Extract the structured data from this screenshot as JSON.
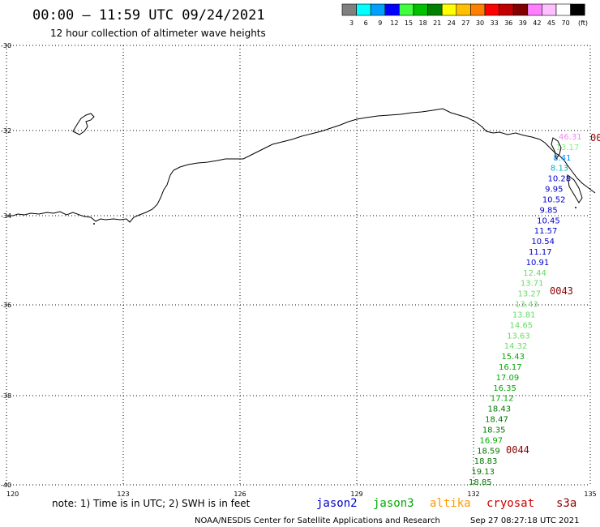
{
  "header": {
    "title": "00:00 – 11:59 UTC 09/24/2021",
    "subtitle": "12 hour collection of altimeter wave heights"
  },
  "legend": {
    "unit": "(ft)",
    "bins": [
      {
        "color": "#808080",
        "label": "3"
      },
      {
        "color": "#00ffff",
        "label": "6"
      },
      {
        "color": "#00a0ff",
        "label": "9"
      },
      {
        "color": "#0000ff",
        "label": "12"
      },
      {
        "color": "#40ff40",
        "label": "15"
      },
      {
        "color": "#00c000",
        "label": "18"
      },
      {
        "color": "#008000",
        "label": "21"
      },
      {
        "color": "#ffff00",
        "label": "24"
      },
      {
        "color": "#ffc000",
        "label": "27"
      },
      {
        "color": "#ff8000",
        "label": "30"
      },
      {
        "color": "#ff0000",
        "label": "33"
      },
      {
        "color": "#c00000",
        "label": "36"
      },
      {
        "color": "#800000",
        "label": "39"
      },
      {
        "color": "#ff80ff",
        "label": "42"
      },
      {
        "color": "#ffc0ff",
        "label": "45"
      },
      {
        "color": "#ffffff",
        "label": "70"
      },
      {
        "color": "#000000",
        "label": ""
      }
    ]
  },
  "map": {
    "lon_range": [
      120,
      135
    ],
    "lat_range": [
      -40,
      -30
    ],
    "lon_ticks": [
      "120",
      "123",
      "126",
      "129",
      "132",
      "135"
    ],
    "lat_ticks": [
      "-30",
      "-32",
      "-34",
      "-36",
      "-38",
      "-40"
    ]
  },
  "observations": [
    {
      "text": "46.31",
      "color": "#ee88ee"
    },
    {
      "text": "13.17",
      "color": "#88ee88"
    },
    {
      "text": "8.41",
      "color": "#0090ff"
    },
    {
      "text": "8.13",
      "color": "#00b0c0"
    },
    {
      "text": "10.28",
      "color": "#0000cc"
    },
    {
      "text": "9.95",
      "color": "#0000cc"
    },
    {
      "text": "10.52",
      "color": "#0000cc"
    },
    {
      "text": "9.85",
      "color": "#0000cc"
    },
    {
      "text": "10.45",
      "color": "#0000cc"
    },
    {
      "text": "11.57",
      "color": "#0000cc"
    },
    {
      "text": "10.54",
      "color": "#0000cc"
    },
    {
      "text": "11.17",
      "color": "#0000cc"
    },
    {
      "text": "10.91",
      "color": "#0000cc"
    },
    {
      "text": "12.44",
      "color": "#66dd66"
    },
    {
      "text": "13.71",
      "color": "#66dd66"
    },
    {
      "text": "13.27",
      "color": "#66dd66"
    },
    {
      "text": "13.43",
      "color": "#66dd66"
    },
    {
      "text": "13.81",
      "color": "#66dd66"
    },
    {
      "text": "14.65",
      "color": "#66dd66"
    },
    {
      "text": "13.63",
      "color": "#66dd66"
    },
    {
      "text": "14.32",
      "color": "#66dd66"
    },
    {
      "text": "15.43",
      "color": "#00aa00"
    },
    {
      "text": "16.17",
      "color": "#00aa00"
    },
    {
      "text": "17.09",
      "color": "#00aa00"
    },
    {
      "text": "16.35",
      "color": "#00aa00"
    },
    {
      "text": "17.12",
      "color": "#00aa00"
    },
    {
      "text": "18.43",
      "color": "#007700"
    },
    {
      "text": "18.47",
      "color": "#007700"
    },
    {
      "text": "18.35",
      "color": "#007700"
    },
    {
      "text": "16.97",
      "color": "#00aa00"
    },
    {
      "text": "18.59",
      "color": "#007700"
    },
    {
      "text": "18.83",
      "color": "#007700"
    },
    {
      "text": "19.13",
      "color": "#007700"
    },
    {
      "text": "18.85",
      "color": "#007700"
    }
  ],
  "pass_times": [
    "00",
    "0043",
    "0044"
  ],
  "footer": {
    "note": "note: 1) Time is in UTC; 2) SWH is in feet",
    "satellites": [
      {
        "name": "jason2",
        "color": "#0000cc"
      },
      {
        "name": "jason3",
        "color": "#00aa00"
      },
      {
        "name": "altika",
        "color": "#ff9900"
      },
      {
        "name": "cryosat",
        "color": "#cc0000"
      },
      {
        "name": "s3a",
        "color": "#8b0000"
      }
    ],
    "credit": "NOAA/NESDIS Center for Satellite Applications and Research",
    "timestamp": "Sep 27 08:27:18 UTC 2021"
  }
}
